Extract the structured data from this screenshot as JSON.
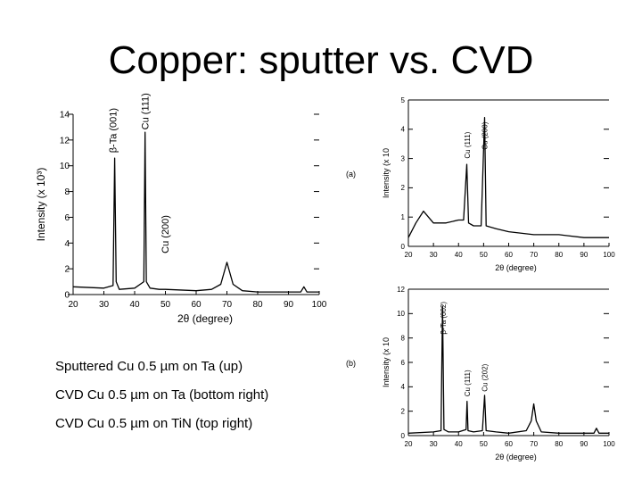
{
  "title": "Copper: sputter vs. CVD",
  "captions": [
    "Sputtered Cu 0.5 µm on Ta (up)",
    "CVD Cu 0.5 µm on Ta (bottom right)",
    "CVD Cu 0.5 µm on TiN (top right)"
  ],
  "colors": {
    "trace": "#000000",
    "background": "#ffffff"
  },
  "chart_data": [
    {
      "type": "line",
      "panel_label": "",
      "xlabel": "2θ (degree)",
      "ylabel": "Intensity (x 10³)",
      "xlim": [
        20,
        100
      ],
      "ylim": [
        0,
        14
      ],
      "xticks": [
        "20",
        "30",
        "40",
        "50",
        "60",
        "70",
        "80",
        "90",
        "100"
      ],
      "yticks": [
        "0",
        "2",
        "4",
        "6",
        "8",
        "10",
        "12",
        "14"
      ],
      "x": [
        20,
        30,
        33,
        33.5,
        34,
        35,
        40,
        43,
        43.4,
        43.8,
        45,
        48,
        50,
        60,
        65,
        68,
        70,
        72,
        75,
        80,
        90,
        94,
        95,
        96,
        100
      ],
      "y": [
        0.6,
        0.5,
        0.7,
        10.6,
        1.0,
        0.4,
        0.5,
        1.0,
        12.6,
        1.0,
        0.5,
        0.4,
        0.4,
        0.3,
        0.4,
        0.8,
        2.5,
        0.8,
        0.3,
        0.2,
        0.2,
        0.2,
        0.6,
        0.2,
        0.2
      ],
      "annotations": [
        {
          "text": "β-Ta (001)",
          "x": 34,
          "y": 11
        },
        {
          "text": "Cu (111)",
          "x": 44.5,
          "y": 12.8
        },
        {
          "text": "Cu (200)",
          "x": 51,
          "y": 3.2
        }
      ]
    },
    {
      "type": "line",
      "panel_label": "(a)",
      "xlabel": "2θ (degree)",
      "ylabel": "Intensity (x 10",
      "xlim": [
        20,
        100
      ],
      "ylim": [
        0,
        5
      ],
      "xticks": [
        "20",
        "30",
        "40",
        "50",
        "60",
        "70",
        "80",
        "90",
        "100"
      ],
      "yticks": [
        "0",
        "1",
        "2",
        "3",
        "4",
        "5"
      ],
      "x": [
        20,
        23,
        26,
        28,
        30,
        35,
        40,
        42,
        43.3,
        44,
        46,
        49,
        50.4,
        51,
        55,
        60,
        70,
        80,
        90,
        100
      ],
      "y": [
        0.3,
        0.8,
        1.2,
        1.0,
        0.8,
        0.8,
        0.9,
        0.9,
        2.8,
        0.8,
        0.7,
        0.7,
        4.4,
        0.7,
        0.6,
        0.5,
        0.4,
        0.4,
        0.3,
        0.3
      ],
      "annotations": [
        {
          "text": "Cu (111)",
          "x": 44.5,
          "y": 3.0
        },
        {
          "text": "Cu (200)",
          "x": 51.5,
          "y": 3.3
        }
      ]
    },
    {
      "type": "line",
      "panel_label": "(b)",
      "xlabel": "2θ (degree)",
      "ylabel": "Intensity (x 10",
      "xlim": [
        20,
        100
      ],
      "ylim": [
        0,
        12
      ],
      "xticks": [
        "20",
        "30",
        "40",
        "50",
        "60",
        "70",
        "80",
        "90",
        "100"
      ],
      "yticks": [
        "0",
        "2",
        "4",
        "6",
        "8",
        "10",
        "12"
      ],
      "x": [
        20,
        30,
        33,
        33.6,
        34.2,
        36,
        40,
        43,
        43.4,
        43.8,
        46,
        49.5,
        50.4,
        51,
        55,
        60,
        67,
        69,
        70,
        71,
        73,
        80,
        94,
        95,
        96,
        100
      ],
      "y": [
        0.2,
        0.3,
        0.4,
        10.6,
        0.5,
        0.3,
        0.3,
        0.5,
        2.8,
        0.4,
        0.3,
        0.4,
        3.3,
        0.4,
        0.3,
        0.2,
        0.4,
        1.2,
        2.6,
        1.2,
        0.3,
        0.2,
        0.2,
        0.6,
        0.2,
        0.2
      ],
      "annotations": [
        {
          "text": "β-Ta (002)",
          "x": 35,
          "y": 8.3
        },
        {
          "text": "Cu (111)",
          "x": 44.5,
          "y": 3.2
        },
        {
          "text": "Cu (202)",
          "x": 51.5,
          "y": 3.6
        }
      ]
    }
  ]
}
